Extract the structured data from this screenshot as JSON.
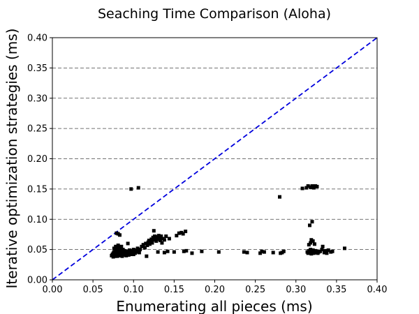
{
  "chart_data": {
    "type": "scatter",
    "title": "Seaching Time Comparison (Aloha)",
    "xlabel": "Enumerating all pieces (ms)",
    "ylabel": "Iterative optimization strategies (ms)",
    "xlim": [
      0,
      0.4
    ],
    "ylim": [
      0,
      0.4
    ],
    "xticks": [
      "0.00",
      "0.05",
      "0.10",
      "0.15",
      "0.20",
      "0.25",
      "0.30",
      "0.35",
      "0.40"
    ],
    "yticks": [
      "0.00",
      "0.05",
      "0.10",
      "0.15",
      "0.20",
      "0.25",
      "0.30",
      "0.35",
      "0.40"
    ],
    "grid": "horizontal-dashed",
    "reference_line": {
      "from": [
        0,
        0
      ],
      "to": [
        0.4,
        0.4
      ],
      "color": "#0000dd",
      "style": "dashed"
    },
    "marker_color": "#000000",
    "marker": "square",
    "series": [
      {
        "points": [
          [
            0.073,
            0.04
          ],
          [
            0.074,
            0.042
          ],
          [
            0.075,
            0.038
          ],
          [
            0.075,
            0.044
          ],
          [
            0.076,
            0.041
          ],
          [
            0.076,
            0.046
          ],
          [
            0.077,
            0.039
          ],
          [
            0.077,
            0.043
          ],
          [
            0.078,
            0.048
          ],
          [
            0.078,
            0.04
          ],
          [
            0.079,
            0.045
          ],
          [
            0.079,
            0.042
          ],
          [
            0.08,
            0.05
          ],
          [
            0.08,
            0.039
          ],
          [
            0.08,
            0.044
          ],
          [
            0.081,
            0.047
          ],
          [
            0.081,
            0.041
          ],
          [
            0.082,
            0.053
          ],
          [
            0.082,
            0.043
          ],
          [
            0.082,
            0.04
          ],
          [
            0.083,
            0.046
          ],
          [
            0.083,
            0.049
          ],
          [
            0.084,
            0.041
          ],
          [
            0.084,
            0.044
          ],
          [
            0.085,
            0.055
          ],
          [
            0.085,
            0.042
          ],
          [
            0.085,
            0.047
          ],
          [
            0.086,
            0.039
          ],
          [
            0.086,
            0.045
          ],
          [
            0.087,
            0.05
          ],
          [
            0.087,
            0.043
          ],
          [
            0.088,
            0.041
          ],
          [
            0.088,
            0.046
          ],
          [
            0.089,
            0.044
          ],
          [
            0.089,
            0.048
          ],
          [
            0.09,
            0.042
          ],
          [
            0.09,
            0.045
          ],
          [
            0.091,
            0.04
          ],
          [
            0.092,
            0.047
          ],
          [
            0.092,
            0.043
          ],
          [
            0.093,
            0.06
          ],
          [
            0.093,
            0.045
          ],
          [
            0.094,
            0.041
          ],
          [
            0.095,
            0.049
          ],
          [
            0.095,
            0.044
          ],
          [
            0.096,
            0.042
          ],
          [
            0.097,
            0.046
          ],
          [
            0.098,
            0.043
          ],
          [
            0.098,
            0.048
          ],
          [
            0.099,
            0.045
          ],
          [
            0.1,
            0.042
          ],
          [
            0.1,
            0.05
          ],
          [
            0.101,
            0.047
          ],
          [
            0.102,
            0.044
          ],
          [
            0.103,
            0.049
          ],
          [
            0.104,
            0.046
          ],
          [
            0.105,
            0.052
          ],
          [
            0.106,
            0.048
          ],
          [
            0.107,
            0.045
          ],
          [
            0.108,
            0.05
          ],
          [
            0.076,
            0.052
          ],
          [
            0.078,
            0.055
          ],
          [
            0.081,
            0.057
          ],
          [
            0.083,
            0.051
          ],
          [
            0.084,
            0.053
          ],
          [
            0.079,
            0.077
          ],
          [
            0.081,
            0.076
          ],
          [
            0.083,
            0.074
          ],
          [
            0.097,
            0.15
          ],
          [
            0.106,
            0.152
          ],
          [
            0.11,
            0.055
          ],
          [
            0.112,
            0.058
          ],
          [
            0.114,
            0.053
          ],
          [
            0.115,
            0.06
          ],
          [
            0.116,
            0.039
          ],
          [
            0.117,
            0.057
          ],
          [
            0.118,
            0.062
          ],
          [
            0.119,
            0.065
          ],
          [
            0.12,
            0.059
          ],
          [
            0.121,
            0.063
          ],
          [
            0.122,
            0.067
          ],
          [
            0.123,
            0.061
          ],
          [
            0.124,
            0.07
          ],
          [
            0.125,
            0.066
          ],
          [
            0.125,
            0.081
          ],
          [
            0.126,
            0.072
          ],
          [
            0.127,
            0.068
          ],
          [
            0.128,
            0.064
          ],
          [
            0.129,
            0.071
          ],
          [
            0.13,
            0.067
          ],
          [
            0.131,
            0.073
          ],
          [
            0.132,
            0.069
          ],
          [
            0.133,
            0.065
          ],
          [
            0.134,
            0.072
          ],
          [
            0.135,
            0.061
          ],
          [
            0.136,
            0.068
          ],
          [
            0.138,
            0.066
          ],
          [
            0.14,
            0.072
          ],
          [
            0.144,
            0.068
          ],
          [
            0.13,
            0.046
          ],
          [
            0.138,
            0.045
          ],
          [
            0.142,
            0.047
          ],
          [
            0.15,
            0.046
          ],
          [
            0.153,
            0.073
          ],
          [
            0.156,
            0.077
          ],
          [
            0.159,
            0.078
          ],
          [
            0.161,
            0.076
          ],
          [
            0.164,
            0.08
          ],
          [
            0.162,
            0.047
          ],
          [
            0.165,
            0.048
          ],
          [
            0.172,
            0.044
          ],
          [
            0.184,
            0.047
          ],
          [
            0.205,
            0.046
          ],
          [
            0.236,
            0.046
          ],
          [
            0.24,
            0.045
          ],
          [
            0.256,
            0.044
          ],
          [
            0.258,
            0.047
          ],
          [
            0.261,
            0.046
          ],
          [
            0.272,
            0.045
          ],
          [
            0.281,
            0.044
          ],
          [
            0.283,
            0.045
          ],
          [
            0.285,
            0.047
          ],
          [
            0.28,
            0.137
          ],
          [
            0.308,
            0.151
          ],
          [
            0.313,
            0.152
          ],
          [
            0.315,
            0.155
          ],
          [
            0.318,
            0.153
          ],
          [
            0.32,
            0.155
          ],
          [
            0.322,
            0.152
          ],
          [
            0.324,
            0.155
          ],
          [
            0.326,
            0.154
          ],
          [
            0.314,
            0.046
          ],
          [
            0.315,
            0.044
          ],
          [
            0.316,
            0.048
          ],
          [
            0.317,
            0.045
          ],
          [
            0.318,
            0.05
          ],
          [
            0.319,
            0.043
          ],
          [
            0.32,
            0.047
          ],
          [
            0.321,
            0.049
          ],
          [
            0.322,
            0.044
          ],
          [
            0.323,
            0.046
          ],
          [
            0.324,
            0.048
          ],
          [
            0.325,
            0.045
          ],
          [
            0.326,
            0.047
          ],
          [
            0.327,
            0.044
          ],
          [
            0.328,
            0.046
          ],
          [
            0.316,
            0.058
          ],
          [
            0.318,
            0.061
          ],
          [
            0.319,
            0.066
          ],
          [
            0.321,
            0.064
          ],
          [
            0.323,
            0.059
          ],
          [
            0.317,
            0.09
          ],
          [
            0.32,
            0.096
          ],
          [
            0.33,
            0.047
          ],
          [
            0.332,
            0.05
          ],
          [
            0.333,
            0.055
          ],
          [
            0.335,
            0.045
          ],
          [
            0.336,
            0.048
          ],
          [
            0.338,
            0.044
          ],
          [
            0.34,
            0.049
          ],
          [
            0.343,
            0.046
          ],
          [
            0.345,
            0.047
          ],
          [
            0.36,
            0.052
          ]
        ]
      }
    ]
  }
}
